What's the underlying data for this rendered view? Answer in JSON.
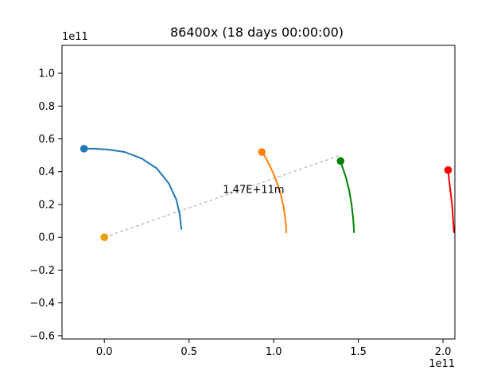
{
  "chart_data": {
    "type": "line",
    "title": "86400x (18 days 00:00:00)",
    "xlabel": "",
    "ylabel": "",
    "x_offset_text": "1e11",
    "y_offset_text": "1e11",
    "xlim": [
      -0.25,
      2.07
    ],
    "ylim": [
      -0.62,
      1.17
    ],
    "xticks": [
      0.0,
      0.5,
      1.0,
      1.5,
      2.0
    ],
    "xtick_labels": [
      "0.0",
      "0.5",
      "1.0",
      "1.5",
      "2.0"
    ],
    "yticks": [
      -0.6,
      -0.4,
      -0.2,
      0.0,
      0.2,
      0.4,
      0.6,
      0.8,
      1.0
    ],
    "ytick_labels": [
      "−0.6",
      "−0.4",
      "−0.2",
      "0.0",
      "0.2",
      "0.4",
      "0.6",
      "0.8",
      "1.0"
    ],
    "grid": false,
    "legend": "none",
    "series": [
      {
        "color": "#1f77b4",
        "x": [
          0.455,
          0.445,
          0.425,
          0.38,
          0.31,
          0.22,
          0.12,
          0.02,
          -0.06,
          -0.12
        ],
        "y": [
          0.05,
          0.14,
          0.23,
          0.33,
          0.42,
          0.48,
          0.52,
          0.535,
          0.54,
          0.54
        ]
      },
      {
        "color": "#ff7f0e",
        "x": [
          1.075,
          1.07,
          1.06,
          1.04,
          1.01,
          0.98,
          0.95,
          0.93
        ],
        "y": [
          0.03,
          0.1,
          0.18,
          0.27,
          0.36,
          0.43,
          0.49,
          0.52
        ]
      },
      {
        "color": "#008000",
        "x": [
          1.475,
          1.47,
          1.46,
          1.445,
          1.425,
          1.405,
          1.395
        ],
        "y": [
          0.03,
          0.11,
          0.2,
          0.29,
          0.37,
          0.43,
          0.465
        ]
      },
      {
        "color": "#ff0000",
        "x": [
          2.065,
          2.06,
          2.055,
          2.045,
          2.035,
          2.03
        ],
        "y": [
          0.03,
          0.1,
          0.18,
          0.27,
          0.36,
          0.41
        ]
      }
    ],
    "markers": [
      {
        "x": -0.12,
        "y": 0.54,
        "color": "#1f77b4"
      },
      {
        "x": 0.93,
        "y": 0.52,
        "color": "#ff7f0e"
      },
      {
        "x": 1.395,
        "y": 0.465,
        "color": "#008000"
      },
      {
        "x": 2.03,
        "y": 0.41,
        "color": "#ff0000"
      },
      {
        "x": 0.0,
        "y": 0.0,
        "color": "#e8a000"
      }
    ],
    "annotation": {
      "text": "1.47E+11m",
      "line_from": [
        0.0,
        0.0
      ],
      "line_to": [
        1.395,
        0.5
      ],
      "label_at": [
        0.7,
        0.27
      ],
      "line_color": "#bbbbbb"
    }
  }
}
